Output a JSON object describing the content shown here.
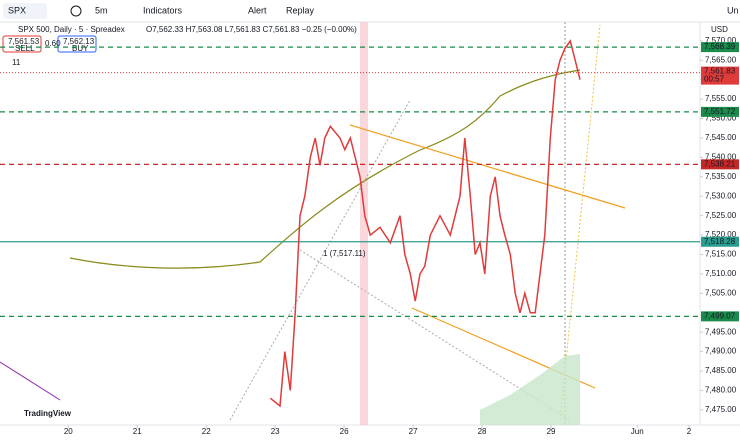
{
  "toolbar": {
    "symbol": "SPX",
    "interval": "5m",
    "indicators": "Indicators",
    "alert": "Alert",
    "replay": "Replay",
    "unlock": "Un"
  },
  "chart_data": {
    "type": "line",
    "title": "SPX 500, Daily · 5 · Spreadex",
    "ohlc": "O7,562.33 H7,563.08 L7,561.83 C7,561.83 −0.25 (−0.00%)",
    "sell": {
      "price": "7,561.53",
      "label": "SELL"
    },
    "spread": "0.60",
    "buy": {
      "price": "7,562.13",
      "label": "BUY"
    },
    "indicator_count": "11",
    "annotation": "1 (7,517.11)",
    "currency": "USD",
    "logo": "TradingView",
    "color": "#e03b3b",
    "x": [
      2.93,
      3.07,
      3.14,
      3.22,
      3.29,
      3.36,
      3.43,
      3.51,
      3.58,
      3.65,
      3.72,
      3.8,
      3.94,
      4.01,
      4.09,
      4.16,
      4.23,
      4.3,
      4.38,
      4.52,
      4.67,
      4.81,
      4.88,
      4.96,
      5.03,
      5.1,
      5.17,
      5.25,
      5.39,
      5.54,
      5.68,
      5.75,
      5.83,
      5.9,
      5.97,
      6.04,
      6.12,
      6.19,
      6.26,
      6.33,
      6.41,
      6.48,
      6.55,
      6.62,
      6.7,
      6.77,
      6.84,
      6.91,
      6.99,
      7.06,
      7.13,
      7.2,
      7.28,
      7.35,
      7.42
    ],
    "values": [
      7478,
      7476,
      7490,
      7480,
      7500,
      7525,
      7530,
      7540,
      7545,
      7538,
      7545,
      7548,
      7545,
      7542,
      7545,
      7540,
      7535,
      7525,
      7520,
      7522,
      7518,
      7525,
      7515,
      7510,
      7503,
      7510,
      7512,
      7520,
      7525,
      7520,
      7530,
      7545,
      7530,
      7515,
      7518,
      7510,
      7530,
      7535,
      7525,
      7520,
      7515,
      7505,
      7500,
      7505,
      7500,
      7500,
      7510,
      7520,
      7545,
      7560,
      7565,
      7568,
      7570,
      7565,
      7560
    ],
    "xlim": [
      -0.99,
      9.16
    ],
    "xticks": [
      {
        "value": 0,
        "label": "20"
      },
      {
        "value": 1,
        "label": "21"
      },
      {
        "value": 2,
        "label": "22"
      },
      {
        "value": 3,
        "label": "23"
      },
      {
        "value": 4,
        "label": "26"
      },
      {
        "value": 5,
        "label": "27"
      },
      {
        "value": 6,
        "label": "28"
      },
      {
        "value": 7,
        "label": "29"
      },
      {
        "value": 8.25,
        "label": "Jun"
      },
      {
        "value": 9,
        "label": "2"
      }
    ],
    "ylim": [
      7471.1,
      7572.8
    ],
    "yticks": [
      {
        "value": 7475,
        "label": "7,475.00"
      },
      {
        "value": 7480,
        "label": "7,480.00"
      },
      {
        "value": 7485,
        "label": "7,485.00"
      },
      {
        "value": 7490,
        "label": "7,490.00"
      },
      {
        "value": 7495,
        "label": "7,495.00"
      },
      {
        "value": 7505,
        "label": "7,505.00"
      },
      {
        "value": 7510,
        "label": "7,510.00"
      },
      {
        "value": 7515,
        "label": "7,515.00"
      },
      {
        "value": 7520,
        "label": "7,520.00"
      },
      {
        "value": 7525,
        "label": "7,525.00"
      },
      {
        "value": 7530,
        "label": "7,530.00"
      },
      {
        "value": 7535,
        "label": "7,535.00"
      },
      {
        "value": 7540,
        "label": "7,540.00"
      },
      {
        "value": 7545,
        "label": "7,545.00"
      },
      {
        "value": 7550,
        "label": "7,550.00"
      },
      {
        "value": 7555,
        "label": "7,555.00"
      },
      {
        "value": 7560,
        "label": "7,560.00"
      },
      {
        "value": 7565,
        "label": "7,565.00"
      },
      {
        "value": 7570,
        "label": "7,570.00"
      }
    ],
    "levels": [
      {
        "value": 7568.39,
        "label": "7,568.39",
        "color": "#1b8a4a",
        "dash": true
      },
      {
        "value": 7551.72,
        "label": "7,551.72",
        "color": "#1b8a4a",
        "dash": true
      },
      {
        "value": 7538.21,
        "label": "7,538.21",
        "color": "#c62828",
        "dash": true
      },
      {
        "value": 7518.28,
        "label": "7,518.28",
        "color": "#2a9d8f",
        "dash": false
      },
      {
        "value": 7499.07,
        "label": "7,499.07",
        "color": "#1b8a4a",
        "dash": true
      }
    ],
    "last": {
      "value": 7561.83,
      "label": "7,561.83",
      "countdown": "00:57",
      "color": "#e03b3b"
    },
    "grid": false
  }
}
